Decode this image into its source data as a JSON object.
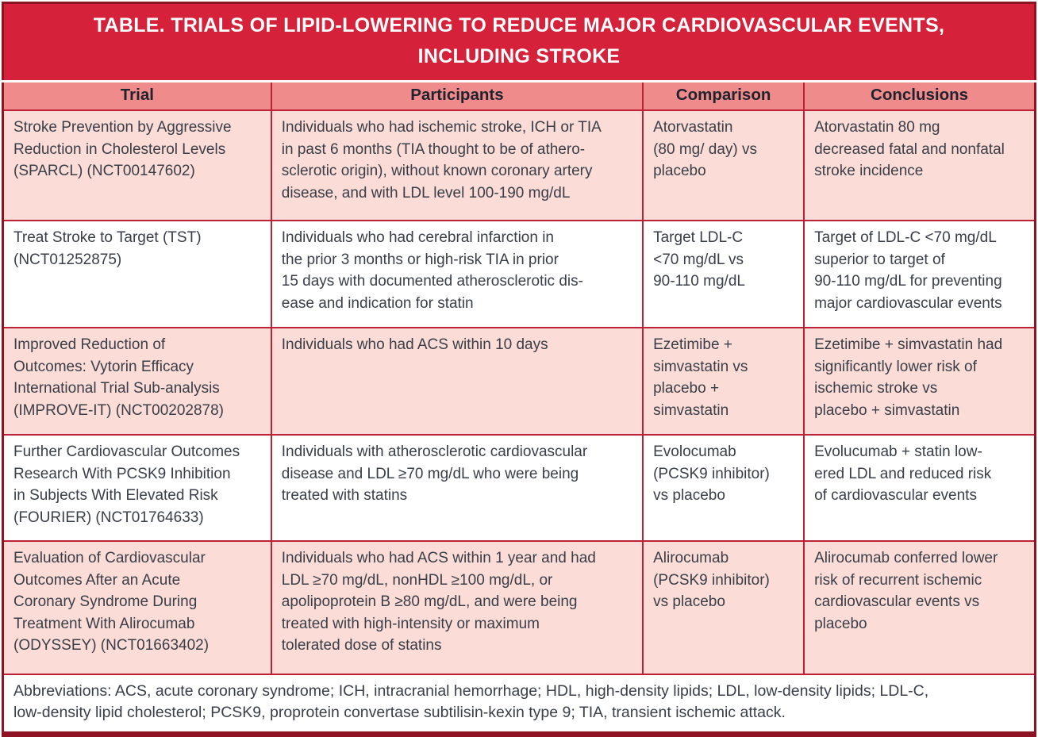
{
  "title": "TABLE. TRIALS OF LIPID-LOWERING TO REDUCE MAJOR CARDIOVASCULAR EVENTS,\nINCLUDING STROKE",
  "columns": [
    "Trial",
    "Participants",
    "Comparison",
    "Conclusions"
  ],
  "rows": [
    {
      "trial": "Stroke Prevention by Aggressive\nReduction in Cholesterol Levels\n(SPARCL) (NCT00147602)",
      "participants": "Individuals who had ischemic stroke, ICH or TIA\nin past 6 months (TIA thought to be of athero-\nsclerotic origin), without known coronary artery\ndisease, and with LDL level 100-190 mg/dL",
      "comparison": "Atorvastatin\n(80 mg/ day) vs\nplacebo",
      "conclusions": "Atorvastatin 80 mg\ndecreased fatal and nonfatal\nstroke incidence"
    },
    {
      "trial": "Treat Stroke to Target (TST)\n(NCT01252875)",
      "participants": "Individuals who had cerebral infarction in\nthe prior 3 months or high-risk TIA in prior\n15 days with documented atherosclerotic dis-\nease and indication for statin",
      "comparison": "Target LDL-C\n<70 mg/dL vs\n90-110 mg/dL",
      "conclusions": "Target of LDL-C <70 mg/dL\nsuperior to target of\n90-110 mg/dL for preventing\nmajor cardiovascular events"
    },
    {
      "trial": "Improved Reduction of\nOutcomes: Vytorin Efficacy\nInternational Trial Sub-analysis\n(IMPROVE-IT) (NCT00202878)",
      "participants": "Individuals who had ACS within 10 days",
      "comparison": "Ezetimibe +\nsimvastatin vs\nplacebo +\nsimvastatin",
      "conclusions": "Ezetimibe + simvastatin had\nsignificantly lower risk of\nischemic stroke vs\nplacebo + simvastatin"
    },
    {
      "trial": "Further Cardiovascular Outcomes\nResearch With PCSK9 Inhibition\nin Subjects With Elevated Risk\n(FOURIER) (NCT01764633)",
      "participants": "Individuals with atherosclerotic cardiovascular\ndisease and LDL ≥70 mg/dL who were being\ntreated with statins",
      "comparison": "Evolocumab\n(PCSK9 inhibitor)\nvs placebo",
      "conclusions": "Evolucumab + statin low-\nered LDL and reduced risk\nof cardiovascular events"
    },
    {
      "trial": "Evaluation of Cardiovascular\nOutcomes After an Acute\nCoronary Syndrome During\nTreatment With Alirocumab\n(ODYSSEY) (NCT01663402)",
      "participants": "Individuals who had ACS within 1 year and had\nLDL ≥70 mg/dL, nonHDL ≥100 mg/dL, or\napolipoprotein B ≥80 mg/dL, and were being\ntreated with high-intensity or maximum\ntolerated dose of statins",
      "comparison": "Alirocumab\n(PCSK9 inhibitor)\nvs placebo",
      "conclusions": "Alirocumab conferred lower\nrisk of recurrent ischemic\ncardiovascular events vs\nplacebo"
    }
  ],
  "footnote": "Abbreviations: ACS, acute coronary syndrome; ICH, intracranial hemorrhage; HDL, high-density lipids; LDL, low-density lipids; LDL-C,\nlow-density lipid cholesterol; PCSK9, proprotein convertase subtilisin-kexin type 9; TIA, transient ischemic attack.",
  "colors": {
    "title_bg": "#d5213a",
    "header_bg": "#f08b8c",
    "row_pink": "#fbdcd7",
    "row_white": "#ffffff",
    "grid": "#be2035",
    "outer_border": "#8e1423",
    "title_text": "#ffffff",
    "header_text": "#20232e",
    "cell_text": "#3a3e48"
  }
}
